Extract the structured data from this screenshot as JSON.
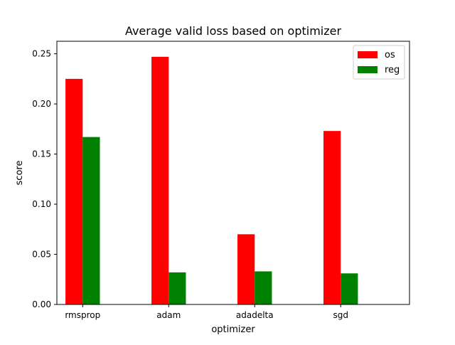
{
  "chart_data": {
    "type": "bar",
    "title": "Average valid loss based on optimizer",
    "xlabel": "optimizer",
    "ylabel": "score",
    "categories": [
      "rmsprop",
      "adam",
      "adadelta",
      "sgd"
    ],
    "series": [
      {
        "name": "os",
        "color": "#ff0000",
        "values": [
          0.225,
          0.247,
          0.07,
          0.173
        ]
      },
      {
        "name": "reg",
        "color": "#008000",
        "values": [
          0.167,
          0.032,
          0.033,
          0.031
        ]
      }
    ],
    "ylim": [
      0,
      0.2625
    ],
    "yticks": [
      "0.00",
      "0.05",
      "0.10",
      "0.15",
      "0.20",
      "0.25"
    ],
    "grid": false,
    "legend_position": "top-right"
  }
}
